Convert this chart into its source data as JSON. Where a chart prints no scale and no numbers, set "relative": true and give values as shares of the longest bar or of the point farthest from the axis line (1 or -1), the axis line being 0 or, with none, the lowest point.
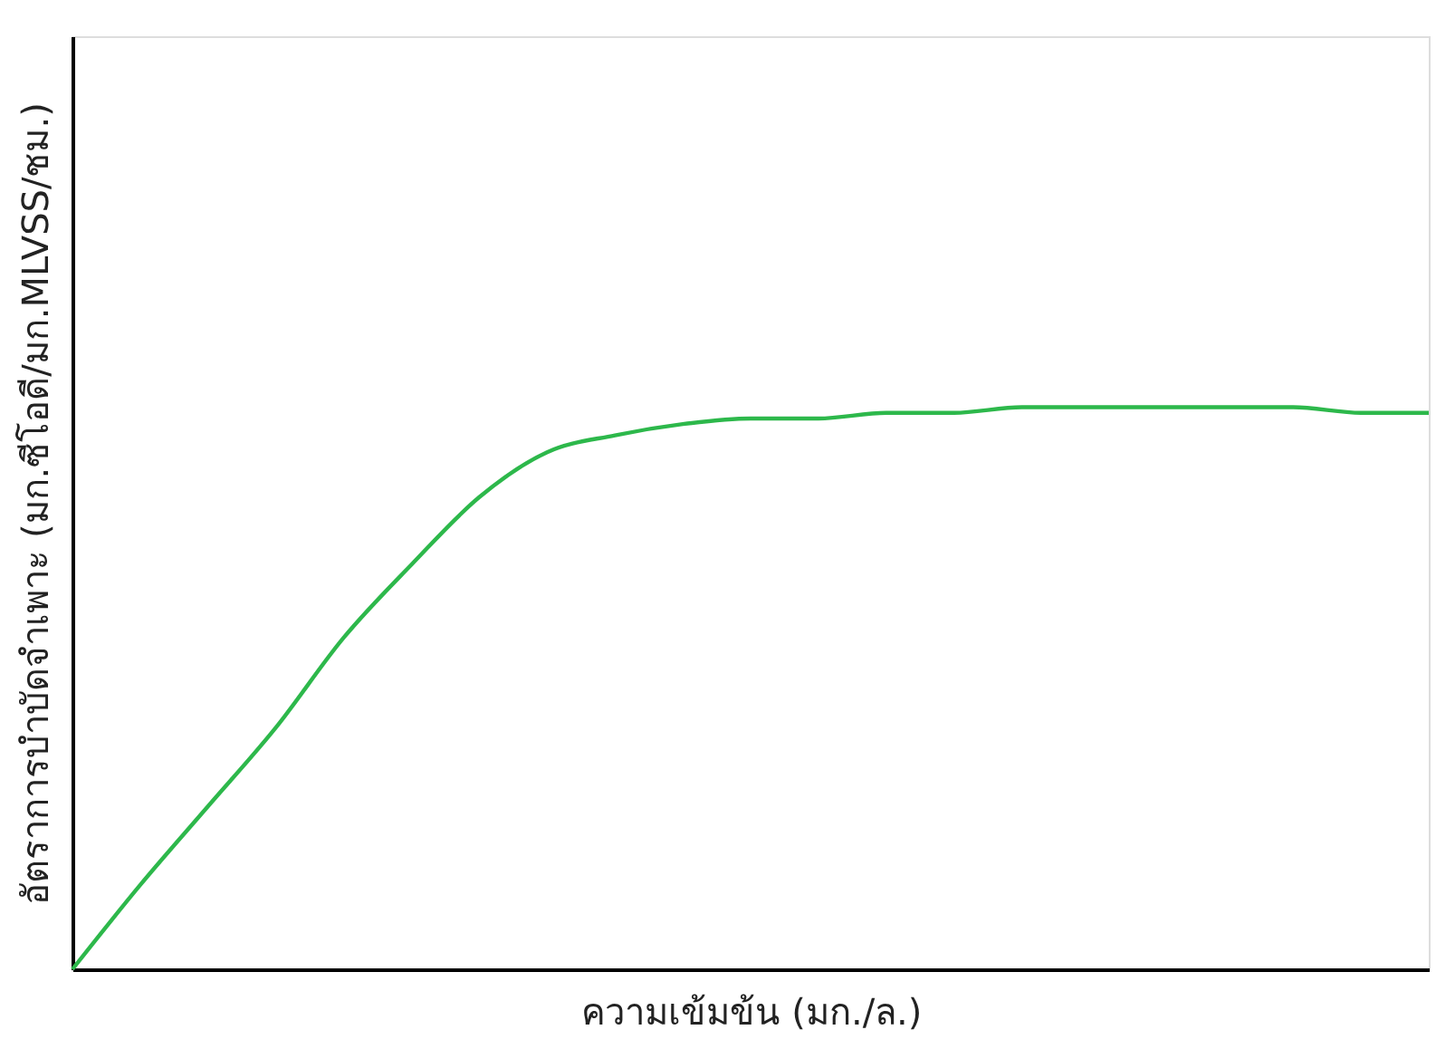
{
  "chart_data": {
    "type": "line",
    "relative": true,
    "grid": false,
    "marker": "none",
    "line_style": "solid",
    "xlabel": "ความเข้มข้น (มก./ล.)",
    "ylabel": "อัตราการบำบัดจำเพาะ (มก.ซีโอดี/มก.MLVSS/ชม.)",
    "categories": [
      null,
      null,
      null,
      null,
      null,
      null,
      null,
      null,
      null,
      null,
      null,
      null,
      null,
      null,
      null,
      null,
      null,
      null,
      null,
      null,
      null
    ],
    "series": [
      {
        "color": "#2db84b",
        "values": [
          0,
          0.15,
          0.29,
          0.43,
          0.59,
          0.72,
          0.84,
          0.92,
          0.95,
          0.97,
          0.98,
          0.98,
          0.99,
          0.99,
          1,
          1,
          1,
          1,
          1,
          0.99,
          0.99
        ]
      }
    ]
  }
}
